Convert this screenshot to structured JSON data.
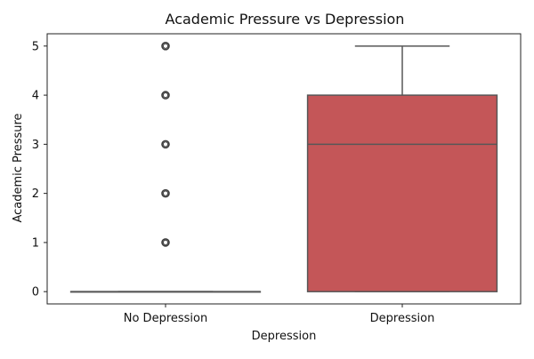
{
  "chart_data": {
    "type": "box",
    "title": "Academic Pressure vs Depression",
    "xlabel": "Depression",
    "ylabel": "Academic Pressure",
    "categories": [
      "No Depression",
      "Depression"
    ],
    "ylim": [
      -0.25,
      5.25
    ],
    "y_ticks": [
      "0",
      "1",
      "2",
      "3",
      "4",
      "5"
    ],
    "grid": false,
    "boxes": [
      {
        "category": "No Depression",
        "min": 0,
        "q1": 0,
        "median": 0,
        "q3": 0,
        "max": 0,
        "outliers": [
          1,
          2,
          3,
          4,
          5
        ],
        "color": "#6e6e6e"
      },
      {
        "category": "Depression",
        "min": 0,
        "q1": 0,
        "median": 3,
        "q3": 4,
        "max": 5,
        "outliers": [],
        "color": "#c45658"
      }
    ]
  }
}
